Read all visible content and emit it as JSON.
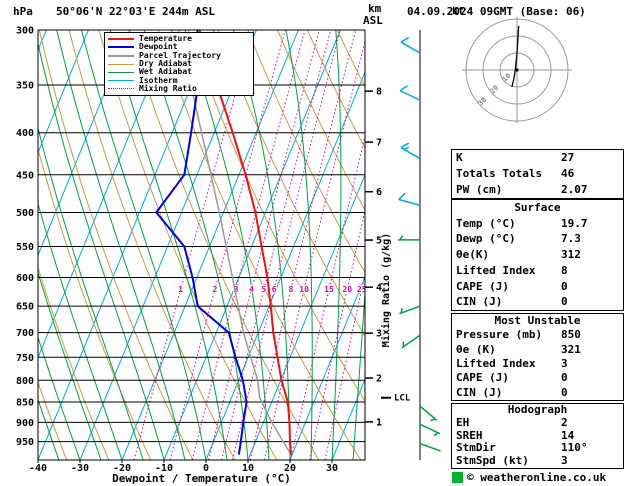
{
  "header": {
    "pressure_unit": "hPa",
    "title": "50°06'N 22°03'E 244m ASL",
    "km": "km",
    "asl": "ASL",
    "datetime": "04.09.2024 09GMT (Base: 06)",
    "kt": "kt"
  },
  "legend": {
    "items": [
      {
        "label": "Temperature",
        "color": "#ee1111",
        "dash": "solid",
        "width": 2
      },
      {
        "label": "Dewpoint",
        "color": "#0000e0",
        "dash": "solid",
        "width": 2
      },
      {
        "label": "Parcel Trajectory",
        "color": "#9a9a9a",
        "dash": "solid",
        "width": 2
      },
      {
        "label": "Dry Adiabat",
        "color": "#cc9944",
        "dash": "solid",
        "width": 1
      },
      {
        "label": "Wet Adiabat",
        "color": "#00a040",
        "dash": "solid",
        "width": 1
      },
      {
        "label": "Isotherm",
        "color": "#00aadd",
        "dash": "solid",
        "width": 1
      },
      {
        "label": "Mixing Ratio",
        "color": "#cc00aa",
        "dash": "dotted",
        "width": 1
      }
    ]
  },
  "axes": {
    "xlabel": "Dewpoint / Temperature (°C)",
    "mixing_axis_label": "Mixing Ratio (g/kg)",
    "lcl_label": "LCL",
    "pressure_ticks": [
      300,
      350,
      400,
      450,
      500,
      550,
      600,
      650,
      700,
      750,
      800,
      850,
      900,
      950
    ],
    "temp_ticks": [
      -40,
      -30,
      -20,
      -10,
      0,
      10,
      20,
      30
    ],
    "km_ticks": [
      1,
      2,
      3,
      4,
      5,
      6,
      7,
      8
    ],
    "mixing_ratio_values": [
      1,
      2,
      3,
      4,
      5,
      6,
      8,
      10,
      15,
      20,
      25
    ]
  },
  "chart_data": {
    "type": "skewt",
    "pressure_range_hpa": [
      300,
      1000
    ],
    "surface_temp_axis_range_c": [
      -40,
      38
    ],
    "temperature_profile": [
      [
        985,
        19.7
      ],
      [
        950,
        18.2
      ],
      [
        925,
        17.2
      ],
      [
        900,
        16.2
      ],
      [
        850,
        13.8
      ],
      [
        800,
        10.2
      ],
      [
        750,
        7.0
      ],
      [
        700,
        3.6
      ],
      [
        650,
        0.4
      ],
      [
        600,
        -3.2
      ],
      [
        550,
        -7.6
      ],
      [
        500,
        -12.4
      ],
      [
        450,
        -18.4
      ],
      [
        400,
        -25.6
      ],
      [
        350,
        -34.0
      ],
      [
        300,
        -43.5
      ]
    ],
    "dewpoint_profile": [
      [
        985,
        7.3
      ],
      [
        950,
        6.5
      ],
      [
        900,
        5.2
      ],
      [
        850,
        4.0
      ],
      [
        800,
        1.0
      ],
      [
        750,
        -3.0
      ],
      [
        700,
        -7.0
      ],
      [
        650,
        -17.0
      ],
      [
        600,
        -21.0
      ],
      [
        550,
        -26.0
      ],
      [
        500,
        -36.0
      ],
      [
        450,
        -33.0
      ],
      [
        400,
        -35.5
      ],
      [
        350,
        -38.5
      ],
      [
        300,
        -44.0
      ]
    ],
    "parcel_profile": [
      [
        985,
        19.7
      ],
      [
        900,
        12.0
      ],
      [
        840,
        6.7
      ],
      [
        800,
        4.5
      ],
      [
        700,
        -3.5
      ],
      [
        600,
        -11.5
      ],
      [
        500,
        -21.0
      ],
      [
        400,
        -33.0
      ],
      [
        300,
        -48.5
      ]
    ],
    "lcl_pressure_hpa": 840,
    "wind_barbs": [
      {
        "p": 320,
        "dir": 300,
        "speed": 10,
        "color": "#00aadd"
      },
      {
        "p": 365,
        "dir": 295,
        "speed": 10,
        "color": "#00aadd"
      },
      {
        "p": 430,
        "dir": 300,
        "speed": 15,
        "color": "#00aadd"
      },
      {
        "p": 490,
        "dir": 285,
        "speed": 10,
        "color": "#00aadd"
      },
      {
        "p": 540,
        "dir": 270,
        "speed": 5,
        "color": "#00a040"
      },
      {
        "p": 650,
        "dir": 250,
        "speed": 5,
        "color": "#00a040"
      },
      {
        "p": 705,
        "dir": 235,
        "speed": 5,
        "color": "#00a040"
      },
      {
        "p": 860,
        "dir": 130,
        "speed": 5,
        "color": "#00a040"
      },
      {
        "p": 905,
        "dir": 115,
        "speed": 5,
        "color": "#00a040"
      },
      {
        "p": 955,
        "dir": 110,
        "speed": 3,
        "color": "#00a040"
      }
    ],
    "hodograph": {
      "rings_kt": [
        10,
        20,
        30
      ],
      "trace_kt": [
        [
          1,
          -26
        ],
        [
          0,
          -10
        ],
        [
          -1,
          0
        ],
        [
          -2,
          6
        ],
        [
          -3,
          10
        ]
      ]
    }
  },
  "tables": [
    {
      "id": "indices",
      "title": null,
      "rows": [
        [
          "K",
          "27"
        ],
        [
          "Totals Totals",
          "46"
        ],
        [
          "PW (cm)",
          "2.07"
        ]
      ]
    },
    {
      "id": "surface",
      "title": "Surface",
      "rows": [
        [
          "Temp (°C)",
          "19.7"
        ],
        [
          "Dewp (°C)",
          "7.3"
        ],
        [
          "θe(K)",
          "312"
        ],
        [
          "Lifted Index",
          "8"
        ],
        [
          "CAPE (J)",
          "0"
        ],
        [
          "CIN (J)",
          "0"
        ]
      ]
    },
    {
      "id": "most-unstable",
      "title": "Most Unstable",
      "rows": [
        [
          "Pressure (mb)",
          "850"
        ],
        [
          "θe (K)",
          "321"
        ],
        [
          "Lifted Index",
          "3"
        ],
        [
          "CAPE (J)",
          "0"
        ],
        [
          "CIN (J)",
          "0"
        ]
      ]
    },
    {
      "id": "hodograph",
      "title": "Hodograph",
      "rows": [
        [
          "EH",
          "2"
        ],
        [
          "SREH",
          "14"
        ],
        [
          "StmDir",
          "110°"
        ],
        [
          "StmSpd (kt)",
          "3"
        ]
      ]
    }
  ],
  "footer": {
    "copyright": "© weatheronline.co.uk",
    "brand_color": "#00b22d"
  }
}
